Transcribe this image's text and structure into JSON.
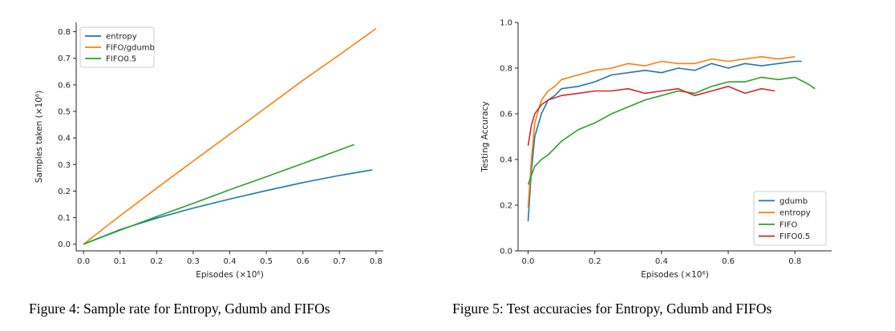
{
  "captions": {
    "fig4": "Figure 4: Sample rate for Entropy, Gdumb and FIFOs",
    "fig5": "Figure 5: Test accuracies for Entropy, Gdumb and FIFOs"
  },
  "chart_data": [
    {
      "type": "line",
      "title": "",
      "xlabel": "Episodes (×10⁶)",
      "ylabel": "Samples taken (×10⁶)",
      "xlim": [
        -0.02,
        0.82
      ],
      "ylim": [
        -0.025,
        0.835
      ],
      "xticks": [
        "0.0",
        "0.1",
        "0.2",
        "0.3",
        "0.4",
        "0.5",
        "0.6",
        "0.7",
        "0.8"
      ],
      "yticks": [
        "0.0",
        "0.1",
        "0.2",
        "0.3",
        "0.4",
        "0.5",
        "0.6",
        "0.7",
        "0.8"
      ],
      "grid": false,
      "legend": "top-left",
      "series": [
        {
          "name": "entropy",
          "color": "#1f77b4",
          "x": [
            0.0,
            0.1,
            0.2,
            0.3,
            0.4,
            0.5,
            0.6,
            0.7,
            0.79
          ],
          "y": [
            0.0,
            0.055,
            0.098,
            0.136,
            0.17,
            0.202,
            0.232,
            0.259,
            0.28
          ]
        },
        {
          "name": "FIFO/gdumb",
          "color": "#ff7f0e",
          "x": [
            0.0,
            0.1,
            0.2,
            0.3,
            0.4,
            0.5,
            0.6,
            0.7,
            0.8
          ],
          "y": [
            0.0,
            0.107,
            0.211,
            0.313,
            0.414,
            0.515,
            0.617,
            0.713,
            0.812
          ]
        },
        {
          "name": "FIFO0.5",
          "color": "#2ca02c",
          "x": [
            0.0,
            0.1,
            0.2,
            0.3,
            0.4,
            0.5,
            0.6,
            0.74
          ],
          "y": [
            0.0,
            0.053,
            0.104,
            0.154,
            0.205,
            0.254,
            0.304,
            0.375
          ]
        }
      ]
    },
    {
      "type": "line",
      "title": "",
      "xlabel": "Episodes (×10⁶)",
      "ylabel": "Testing Accuracy",
      "xlim": [
        -0.03,
        0.91
      ],
      "ylim": [
        0.0,
        1.0
      ],
      "xticks": [
        "0.0",
        "0.2",
        "0.4",
        "0.6",
        "0.8"
      ],
      "yticks": [
        "0.0",
        "0.2",
        "0.4",
        "0.6",
        "0.8",
        "1.0"
      ],
      "grid": false,
      "legend": "bottom-right",
      "series": [
        {
          "name": "gdumb",
          "color": "#1f77b4",
          "x": [
            0.0,
            0.01,
            0.02,
            0.04,
            0.06,
            0.08,
            0.1,
            0.15,
            0.2,
            0.25,
            0.3,
            0.35,
            0.4,
            0.45,
            0.5,
            0.55,
            0.6,
            0.65,
            0.7,
            0.75,
            0.8,
            0.82
          ],
          "y": [
            0.13,
            0.35,
            0.5,
            0.6,
            0.66,
            0.68,
            0.71,
            0.72,
            0.74,
            0.77,
            0.78,
            0.79,
            0.78,
            0.8,
            0.79,
            0.82,
            0.8,
            0.82,
            0.81,
            0.82,
            0.83,
            0.83
          ]
        },
        {
          "name": "entropy",
          "color": "#ff7f0e",
          "x": [
            0.0,
            0.01,
            0.02,
            0.04,
            0.06,
            0.08,
            0.1,
            0.15,
            0.2,
            0.25,
            0.3,
            0.35,
            0.4,
            0.45,
            0.5,
            0.55,
            0.6,
            0.65,
            0.7,
            0.75,
            0.8
          ],
          "y": [
            0.19,
            0.4,
            0.56,
            0.66,
            0.7,
            0.72,
            0.75,
            0.77,
            0.79,
            0.8,
            0.82,
            0.81,
            0.83,
            0.82,
            0.82,
            0.84,
            0.83,
            0.84,
            0.85,
            0.84,
            0.85
          ]
        },
        {
          "name": "FIFO",
          "color": "#2ca02c",
          "x": [
            0.0,
            0.01,
            0.02,
            0.04,
            0.06,
            0.08,
            0.1,
            0.15,
            0.2,
            0.25,
            0.3,
            0.35,
            0.4,
            0.45,
            0.5,
            0.55,
            0.6,
            0.65,
            0.7,
            0.75,
            0.8,
            0.84,
            0.86
          ],
          "y": [
            0.29,
            0.33,
            0.37,
            0.4,
            0.42,
            0.45,
            0.48,
            0.53,
            0.56,
            0.6,
            0.63,
            0.66,
            0.68,
            0.7,
            0.69,
            0.72,
            0.74,
            0.74,
            0.76,
            0.75,
            0.76,
            0.73,
            0.71
          ]
        },
        {
          "name": "FIFO0.5",
          "color": "#d62728",
          "x": [
            0.0,
            0.01,
            0.02,
            0.04,
            0.06,
            0.08,
            0.1,
            0.15,
            0.2,
            0.25,
            0.3,
            0.35,
            0.4,
            0.45,
            0.5,
            0.55,
            0.6,
            0.65,
            0.7,
            0.74
          ],
          "y": [
            0.46,
            0.55,
            0.6,
            0.64,
            0.66,
            0.67,
            0.68,
            0.69,
            0.7,
            0.7,
            0.71,
            0.69,
            0.7,
            0.71,
            0.68,
            0.7,
            0.72,
            0.69,
            0.71,
            0.7
          ]
        }
      ]
    }
  ]
}
